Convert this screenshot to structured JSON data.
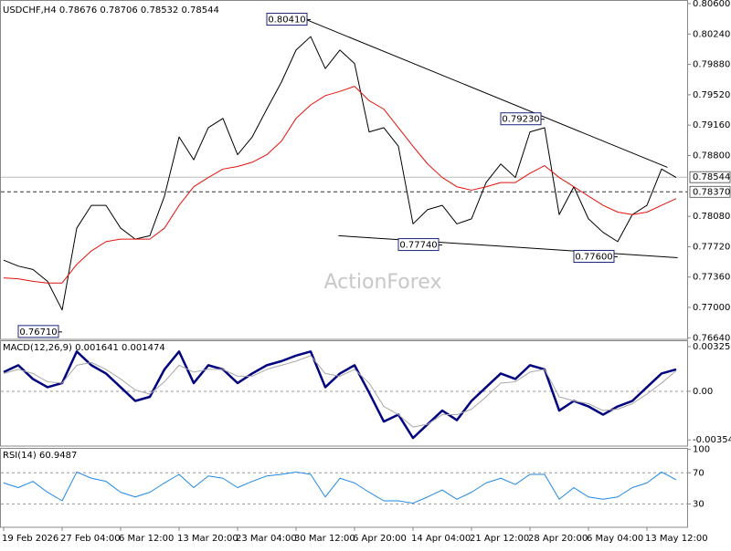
{
  "watermark": "ActionForex",
  "chart_data": [
    {
      "type": "line",
      "title": "USDCHF,H4 0.78676 0.78706 0.78532 0.78544",
      "categories": [
        "19 Feb 2026",
        null,
        null,
        null,
        "27 Feb 04:00",
        null,
        null,
        null,
        "6 Mar 12:00",
        null,
        null,
        null,
        "13 Mar 20:00",
        null,
        null,
        null,
        "23 Mar 04:00",
        null,
        null,
        null,
        "30 Mar 12:00",
        null,
        null,
        null,
        "6 Apr 20:00",
        null,
        null,
        null,
        "14 Apr 04:00",
        null,
        null,
        null,
        "21 Apr 12:00",
        null,
        null,
        null,
        "28 Apr 20:00",
        null,
        null,
        null,
        "6 May 04:00",
        null,
        null,
        null,
        "13 May 12:00",
        null,
        null
      ],
      "series": [
        {
          "color": "#000000",
          "width": 1,
          "values": [
            0.7756,
            0.7749,
            0.7745,
            0.7731,
            0.7697,
            0.7794,
            0.7821,
            0.7821,
            0.7794,
            0.7781,
            0.7785,
            0.7832,
            0.7902,
            0.7875,
            0.7913,
            0.7924,
            0.7881,
            0.7902,
            0.7935,
            0.7967,
            0.8005,
            0.8021,
            0.7983,
            0.8005,
            0.7989,
            0.7908,
            0.7913,
            0.7891,
            0.7799,
            0.7816,
            0.7821,
            0.7799,
            0.7805,
            0.7848,
            0.787,
            0.7854,
            0.7908,
            0.7913,
            0.781,
            0.7843,
            0.7805,
            0.7789,
            0.7778,
            0.781,
            0.7821,
            0.7864,
            0.7854
          ]
        },
        {
          "color": "#e3120b",
          "width": 1,
          "values": [
            0.7735,
            0.7734,
            0.7731,
            0.7729,
            0.7729,
            0.7751,
            0.7767,
            0.7778,
            0.7781,
            0.7781,
            0.7781,
            0.7794,
            0.7821,
            0.7843,
            0.7854,
            0.7864,
            0.7867,
            0.7872,
            0.7881,
            0.7897,
            0.7924,
            0.794,
            0.7951,
            0.7956,
            0.7962,
            0.7945,
            0.7935,
            0.7913,
            0.7891,
            0.787,
            0.7854,
            0.7843,
            0.7839,
            0.7843,
            0.7848,
            0.7848,
            0.7859,
            0.7868,
            0.7854,
            0.7843,
            0.7832,
            0.7821,
            0.7813,
            0.781,
            0.7813,
            0.7821,
            0.7829
          ]
        }
      ],
      "ylim": [
        0.76622,
        0.80643
      ],
      "yticks": [
        {
          "value": 0.806,
          "label": "0.80600"
        },
        {
          "value": 0.8024,
          "label": "0.80240"
        },
        {
          "value": 0.7988,
          "label": "0.79880"
        },
        {
          "value": 0.7952,
          "label": "0.79520"
        },
        {
          "value": 0.7916,
          "label": "0.79160"
        },
        {
          "value": 0.788,
          "label": "0.78800"
        },
        {
          "value": 0.7808,
          "label": "0.78080"
        },
        {
          "value": 0.7772,
          "label": "0.77720"
        },
        {
          "value": 0.7736,
          "label": "0.77360"
        },
        {
          "value": 0.77,
          "label": "0.77000"
        },
        {
          "value": 0.7664,
          "label": "0.76640"
        }
      ],
      "annotations": [
        {
          "at": 21,
          "value": 0.8041,
          "label": "0.80410"
        },
        {
          "at": 37,
          "value": 0.7923,
          "label": "0.79230"
        },
        {
          "at": 30,
          "value": 0.7774,
          "label": "0.77740"
        },
        {
          "at": 42,
          "value": 0.776,
          "label": "0.77600"
        },
        {
          "at": 4,
          "value": 0.7671,
          "label": "0.76710"
        }
      ],
      "trendlines": [
        {
          "x": [
            20.7,
            45.4
          ],
          "y": [
            0.8041,
            0.7866
          ]
        },
        {
          "x": [
            22.9,
            46.1
          ],
          "y": [
            0.7785,
            0.7759
          ]
        }
      ],
      "price_lines": [
        {
          "value": 0.78544,
          "label": "0.78544",
          "style": "solid"
        },
        {
          "value": 0.7837,
          "label": "0.78370",
          "style": "dashed"
        }
      ]
    },
    {
      "type": "line",
      "title": "MACD(12,26,9) 0.001641 0.001474",
      "series": [
        {
          "color": "#000080",
          "width": 2.5,
          "values": [
            0.0014,
            0.0019,
            0.0009,
            0.0003,
            0.0006,
            0.0029,
            0.0019,
            0.0013,
            0.0003,
            -0.0007,
            -0.0004,
            0.0016,
            0.0029,
            0.0006,
            0.0019,
            0.0016,
            0.0006,
            0.0013,
            0.0019,
            0.0022,
            0.0026,
            0.0029,
            0.0003,
            0.0013,
            0.0019,
            -0.0001,
            -0.0022,
            -0.0017,
            -0.0034,
            -0.0024,
            -0.0014,
            -0.0021,
            -0.0007,
            0.0003,
            0.0013,
            0.0009,
            0.0019,
            0.0016,
            -0.0014,
            -0.0007,
            -0.0011,
            -0.0017,
            -0.0011,
            -0.0007,
            0.0003,
            0.0013,
            0.0016
          ]
        },
        {
          "color": "#a8a8a8",
          "width": 1,
          "values": [
            0.0013,
            0.0016,
            0.0013,
            0.0007,
            0.0006,
            0.0019,
            0.0021,
            0.0016,
            0.0009,
            0.0001,
            -0.0002,
            0.0007,
            0.0019,
            0.0014,
            0.0016,
            0.0016,
            0.0011,
            0.0011,
            0.0016,
            0.0019,
            0.0022,
            0.0026,
            0.0013,
            0.0011,
            0.0016,
            0.0006,
            -0.0011,
            -0.0017,
            -0.0026,
            -0.0024,
            -0.0017,
            -0.0017,
            -0.0013,
            -0.0004,
            0.0006,
            0.0007,
            0.0014,
            0.0016,
            -0.0004,
            -0.0007,
            -0.0009,
            -0.0014,
            -0.0013,
            -0.0009,
            -0.0002,
            0.0006,
            0.0015
          ]
        }
      ],
      "ylim": [
        -0.00399,
        0.00372
      ],
      "yticks": [
        0.003256,
        {
          "value": 0,
          "label": "0.00"
        },
        -0.00354
      ],
      "levels": [
        0
      ]
    },
    {
      "type": "line",
      "title": "RSI(14) 60.9487",
      "series": [
        {
          "color": "#1e88e5",
          "width": 1,
          "values": [
            57,
            51,
            59,
            45,
            34,
            71,
            63,
            59,
            45,
            39,
            45,
            57,
            68,
            51,
            66,
            63,
            51,
            59,
            66,
            68,
            71,
            68,
            39,
            63,
            57,
            45,
            34,
            34,
            31,
            39,
            48,
            36,
            45,
            57,
            63,
            55,
            68,
            68,
            36,
            51,
            39,
            36,
            39,
            51,
            57,
            71,
            61
          ]
        }
      ],
      "ylim": [
        0,
        102
      ],
      "yticks": [
        100,
        70,
        30
      ],
      "levels": [
        70,
        30
      ]
    }
  ]
}
